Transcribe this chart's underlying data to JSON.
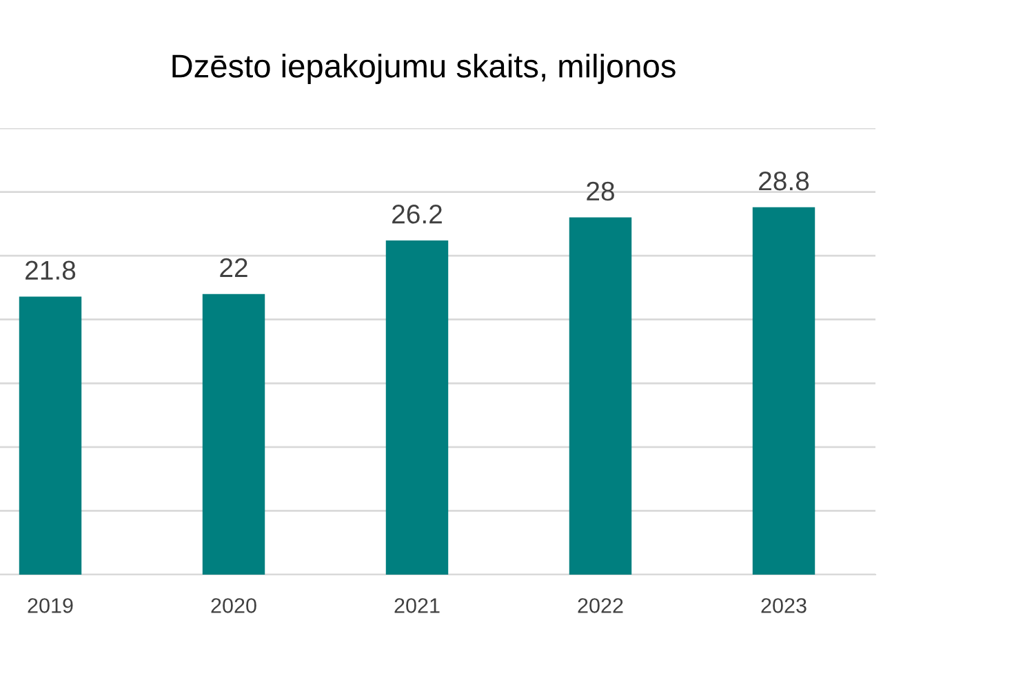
{
  "chart_data": {
    "type": "bar",
    "title": "Dzēsto iepakojumu skaits, miljonos",
    "categories": [
      "2019",
      "2020",
      "2021",
      "2022",
      "2023"
    ],
    "values": [
      21.8,
      22,
      26.2,
      28,
      28.8
    ],
    "color": "#007f7f",
    "ylim": [
      0,
      35
    ],
    "yticks": [
      {
        "value": 0,
        "label": null
      },
      {
        "value": 5,
        "label": null
      },
      {
        "value": 10,
        "label": null
      },
      {
        "value": 15,
        "label": null
      },
      {
        "value": 20,
        "label": null
      },
      {
        "value": 25,
        "label": null
      },
      {
        "value": 30,
        "label": null
      },
      {
        "value": 35,
        "label": null
      }
    ],
    "tick_labels": "x",
    "grid": "y",
    "data_labels": true,
    "legend": false
  }
}
